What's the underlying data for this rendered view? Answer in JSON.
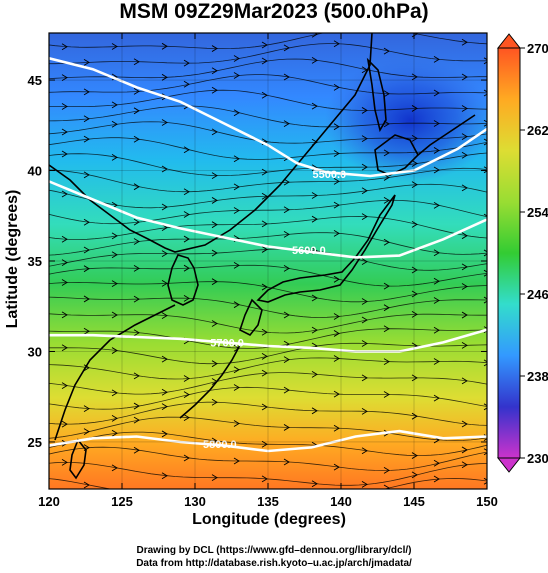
{
  "title": "MSM 09Z29Mar2023 (500.0hPa)",
  "xlabel": "Longitude (degrees)",
  "ylabel": "Latitude  (degrees)",
  "credits": {
    "line1": "Drawing by DCL (https://www.gfd–dennou.org/library/dcl/)",
    "line2": "Data from http://database.rish.kyoto–u.ac.jp/arch/jmadata/"
  },
  "map": {
    "lon_range": [
      120,
      150
    ],
    "lat_range": [
      22.4,
      47.6
    ],
    "x_ticks": [
      120,
      125,
      130,
      135,
      140,
      145,
      150
    ],
    "y_ticks": [
      25,
      30,
      35,
      40,
      45
    ],
    "colorbar": {
      "min": 230,
      "max": 270,
      "tick_labels": [
        "230",
        "238",
        "246",
        "254",
        "262",
        "270"
      ],
      "tick_values": [
        230,
        238,
        246,
        254,
        262,
        270
      ],
      "stops": [
        "#cc33cc",
        "#3333cc",
        "#3399ff",
        "#33ddcc",
        "#33cc33",
        "#99dd33",
        "#dddd33",
        "#ffaa22",
        "#ff5522"
      ]
    },
    "contours": [
      {
        "label": "5500.0",
        "label_lon": 139.2,
        "label_lat": 39.8,
        "points": [
          [
            120,
            46.2
          ],
          [
            123,
            45.6
          ],
          [
            126,
            44.6
          ],
          [
            129,
            43.8
          ],
          [
            132,
            42.6
          ],
          [
            135,
            41.4
          ],
          [
            137,
            40.4
          ],
          [
            139,
            39.9
          ],
          [
            142,
            39.7
          ],
          [
            145,
            40
          ],
          [
            148,
            41.2
          ],
          [
            150,
            42.3
          ]
        ]
      },
      {
        "label": "5600.0",
        "label_lon": 137.8,
        "label_lat": 35.6,
        "points": [
          [
            120,
            39.4
          ],
          [
            123,
            38.4
          ],
          [
            126,
            37.4
          ],
          [
            129,
            36.8
          ],
          [
            132,
            36.3
          ],
          [
            135,
            35.8
          ],
          [
            138,
            35.5
          ],
          [
            141,
            35.2
          ],
          [
            144,
            35.3
          ],
          [
            147,
            36.2
          ],
          [
            150,
            37.3
          ]
        ]
      },
      {
        "label": "5700.0",
        "label_lon": 132.2,
        "label_lat": 30.5,
        "points": [
          [
            120,
            30.9
          ],
          [
            123,
            30.9
          ],
          [
            126,
            30.8
          ],
          [
            129,
            30.7
          ],
          [
            132,
            30.5
          ],
          [
            135,
            30.3
          ],
          [
            138,
            30.2
          ],
          [
            141,
            30
          ],
          [
            144,
            30
          ],
          [
            147,
            30.5
          ],
          [
            150,
            31.2
          ]
        ]
      },
      {
        "label": "5800.0",
        "label_lon": 131.7,
        "label_lat": 24.9,
        "points": [
          [
            120,
            24.8
          ],
          [
            123,
            25.2
          ],
          [
            126,
            25.3
          ],
          [
            129,
            25
          ],
          [
            132,
            24.8
          ],
          [
            135,
            24.5
          ],
          [
            138,
            24.7
          ],
          [
            141,
            25.3
          ],
          [
            144,
            25.6
          ],
          [
            147,
            25.2
          ],
          [
            150,
            25.3
          ]
        ]
      }
    ],
    "land_color": "#000000"
  }
}
